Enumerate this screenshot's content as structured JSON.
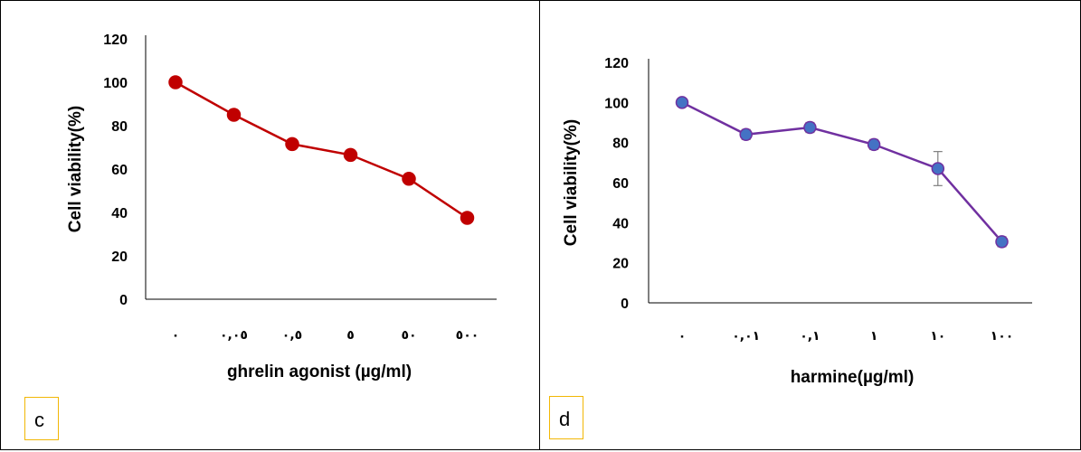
{
  "panels": [
    {
      "letter": "c"
    },
    {
      "letter": "d"
    }
  ],
  "chart_data": [
    {
      "type": "line",
      "categories": [
        "٠",
        "٠,٠٥",
        "٠,٥",
        "٥",
        "٥٠",
        "٥٠٠"
      ],
      "series": [
        {
          "color": "#c00000",
          "values": [
            100,
            85,
            71.5,
            66.5,
            55.5,
            37.5
          ]
        }
      ],
      "xlabel": "ghrelin agonist (µg/ml)",
      "ylabel": "Cell viability(%)",
      "ylim": [
        0,
        120
      ],
      "yticks": [
        0,
        20,
        40,
        60,
        80,
        100,
        120
      ],
      "grid": false,
      "marker_color": "#c00000",
      "line_color": "#c00000"
    },
    {
      "type": "line",
      "categories": [
        "٠",
        "٠,٠١",
        "٠,١",
        "١",
        "١٠",
        "١٠٠"
      ],
      "series": [
        {
          "color": "#7030a0",
          "values": [
            100,
            84,
            87.5,
            79,
            67,
            30.5
          ],
          "error": [
            0,
            2.5,
            2.5,
            2.5,
            8.5,
            2.5
          ]
        }
      ],
      "xlabel": "harmine(µg/ml)",
      "ylabel": "Cell viability(%)",
      "ylim": [
        0,
        120
      ],
      "yticks": [
        0,
        20,
        40,
        60,
        80,
        100,
        120
      ],
      "grid": false,
      "marker_color": "#4472c4",
      "line_color": "#7030a0"
    }
  ]
}
